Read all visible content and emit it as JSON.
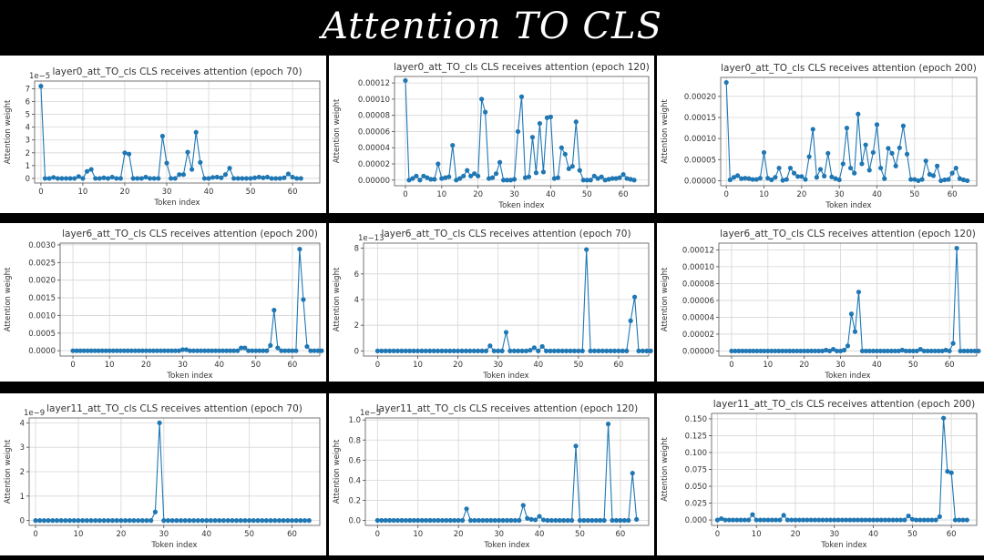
{
  "page_title": "Attention TO CLS",
  "chart_data": [
    {
      "type": "line",
      "title": "layer0_att_TO_cls CLS receives attention (epoch 70)",
      "xlabel": "Token index",
      "ylabel": "Attention weight",
      "exponent": "1e−5",
      "xlim": [
        -1.5,
        66.5
      ],
      "ylim": [
        -0.36,
        7.6
      ],
      "xticks": [
        0,
        10,
        20,
        30,
        40,
        50,
        60
      ],
      "yticks": [
        0,
        1,
        2,
        3,
        4,
        5,
        6,
        7
      ],
      "ytick_labels": [
        "0",
        "1",
        "2",
        "3",
        "4",
        "5",
        "6",
        "7"
      ],
      "grid": true,
      "series": [
        {
          "values": [
            7.2,
            0,
            0,
            0.08,
            0,
            0,
            0,
            0,
            0,
            0.15,
            0,
            0.55,
            0.7,
            0,
            0,
            0.05,
            0,
            0.1,
            0,
            0,
            2.0,
            1.9,
            0,
            0,
            0,
            0.1,
            0,
            0,
            0,
            3.3,
            1.2,
            0,
            0,
            0.3,
            0.3,
            2.05,
            0.7,
            3.6,
            1.25,
            0,
            0,
            0.08,
            0.1,
            0.05,
            0.3,
            0.8,
            0,
            0,
            0,
            0,
            0,
            0.05,
            0.1,
            0.05,
            0.1,
            0,
            0,
            0,
            0.05,
            0.35,
            0.1,
            0,
            0
          ]
        }
      ]
    },
    {
      "type": "line",
      "title": "layer0_att_TO_cls CLS receives attention (epoch 120)",
      "xlabel": "Token index",
      "ylabel": "Attention weight",
      "exponent": "",
      "xlim": [
        -3,
        67
      ],
      "ylim": [
        -7e-06,
        0.000128
      ],
      "xticks": [
        0,
        10,
        20,
        30,
        40,
        50,
        60
      ],
      "yticks": [
        0,
        2e-05,
        4e-05,
        6e-05,
        8e-05,
        0.0001,
        0.00012
      ],
      "ytick_labels": [
        "0.00000",
        "0.00002",
        "0.00004",
        "0.00006",
        "0.00008",
        "0.00010",
        "0.00012"
      ],
      "grid": true,
      "series": [
        {
          "values": [
            0.000123,
            0,
            2e-06,
            5e-06,
            0,
            5e-06,
            3e-06,
            1e-06,
            1e-06,
            2e-05,
            2e-06,
            3e-06,
            4e-06,
            4.3e-05,
            0,
            2e-06,
            5e-06,
            1.2e-05,
            5e-06,
            8e-06,
            5e-06,
            0.0001,
            8.4e-05,
            2e-06,
            3e-06,
            8e-06,
            2.2e-05,
            0,
            0,
            0,
            1e-06,
            6e-05,
            0.000103,
            3e-06,
            4e-06,
            5.3e-05,
            9e-06,
            7e-05,
            1e-05,
            7.7e-05,
            7.8e-05,
            2e-06,
            3e-06,
            4e-05,
            3.2e-05,
            1.4e-05,
            1.7e-05,
            7.2e-05,
            1.2e-05,
            0,
            0,
            0,
            5e-06,
            2e-06,
            4e-06,
            0,
            1e-06,
            2e-06,
            2e-06,
            3e-06,
            7e-06,
            2e-06,
            1e-06,
            0
          ]
        }
      ]
    },
    {
      "type": "line",
      "title": "layer0_att_TO_cls CLS receives attention (epoch 200)",
      "xlabel": "Token index",
      "ylabel": "Attention weight",
      "exponent": "",
      "xlim": [
        -1.5,
        66.5
      ],
      "ylim": [
        -1.2e-05,
        0.000245
      ],
      "xticks": [
        0,
        10,
        20,
        30,
        40,
        50,
        60
      ],
      "yticks": [
        0,
        5e-05,
        0.0001,
        0.00015,
        0.0002
      ],
      "ytick_labels": [
        "0.00000",
        "0.00005",
        "0.00010",
        "0.00015",
        "0.00020"
      ],
      "grid": true,
      "series": [
        {
          "values": [
            0.000233,
            2e-06,
            8e-06,
            1.2e-05,
            5e-06,
            6e-06,
            5e-06,
            3e-06,
            3e-06,
            6e-06,
            6.7e-05,
            6e-06,
            2e-06,
            8e-06,
            3e-05,
            1e-06,
            3e-06,
            3e-05,
            1.8e-05,
            1e-05,
            1e-05,
            3e-06,
            5.7e-05,
            0.000122,
            8e-06,
            2.7e-05,
            1.1e-05,
            6.5e-05,
            9e-06,
            5e-06,
            2e-06,
            4e-05,
            0.000125,
            3e-05,
            1.8e-05,
            0.000158,
            4e-05,
            8.5e-05,
            2.5e-05,
            6.7e-05,
            0.000133,
            3e-05,
            5e-06,
            7.7e-05,
            6.5e-05,
            3.5e-05,
            7.8e-05,
            0.00013,
            6.3e-05,
            3e-06,
            3e-06,
            0,
            3e-06,
            4.7e-05,
            1.5e-05,
            1.2e-05,
            3.5e-05,
            0,
            2e-06,
            3e-06,
            1.8e-05,
            3e-05,
            5e-06,
            2e-06,
            0
          ]
        }
      ]
    },
    {
      "type": "line",
      "title": "layer6_att_TO_cls CLS receives attention (epoch 200)",
      "xlabel": "Token index",
      "ylabel": "Attention weight",
      "exponent": "",
      "xlim": [
        -3.5,
        67.5
      ],
      "ylim": [
        -0.00015,
        0.00305
      ],
      "xticks": [
        0,
        10,
        20,
        30,
        40,
        50,
        60
      ],
      "yticks": [
        0,
        0.0005,
        0.001,
        0.0015,
        0.002,
        0.0025,
        0.003
      ],
      "ytick_labels": [
        "0.0000",
        "0.0005",
        "0.0010",
        "0.0015",
        "0.0020",
        "0.0025",
        "0.0030"
      ],
      "grid": true,
      "series": [
        {
          "values": [
            0,
            0,
            0,
            0,
            0,
            0,
            0,
            0,
            0,
            0,
            0,
            0,
            0,
            0,
            0,
            0,
            0,
            0,
            0,
            0,
            0,
            0,
            0,
            0,
            0,
            0,
            0,
            0,
            0,
            0,
            3e-05,
            3e-05,
            0,
            0,
            0,
            0,
            0,
            0,
            0,
            0,
            0,
            0,
            0,
            0,
            0,
            0,
            8e-05,
            8e-05,
            0,
            0,
            0,
            0,
            0,
            0,
            0.00015,
            0.00115,
            8e-05,
            0,
            0,
            0,
            0,
            0,
            0.00288,
            0.00145,
            0.00012,
            0,
            0,
            0,
            0
          ]
        }
      ]
    },
    {
      "type": "line",
      "title": "layer6_att_TO_cls CLS receives attention (epoch 70)",
      "xlabel": "Token index",
      "ylabel": "Attention weight",
      "exponent": "1e−13",
      "xlim": [
        -3.5,
        67.5
      ],
      "ylim": [
        -0.4,
        8.4
      ],
      "xticks": [
        0,
        10,
        20,
        30,
        40,
        50,
        60
      ],
      "yticks": [
        0,
        2,
        4,
        6,
        8
      ],
      "ytick_labels": [
        "0",
        "2",
        "4",
        "6",
        "8"
      ],
      "grid": true,
      "series": [
        {
          "values": [
            0,
            0,
            0,
            0,
            0,
            0,
            0,
            0,
            0,
            0,
            0,
            0,
            0,
            0,
            0,
            0,
            0,
            0,
            0,
            0,
            0,
            0,
            0,
            0,
            0,
            0,
            0,
            0,
            0.4,
            0,
            0,
            0,
            1.45,
            0,
            0,
            0,
            0,
            0,
            0.05,
            0.25,
            0,
            0.35,
            0,
            0,
            0,
            0,
            0,
            0,
            0,
            0,
            0,
            0,
            7.9,
            0,
            0,
            0,
            0,
            0,
            0,
            0,
            0,
            0,
            0,
            2.35,
            4.2,
            0,
            0,
            0,
            0
          ]
        }
      ]
    },
    {
      "type": "line",
      "title": "layer6_att_TO_cls CLS receives attention (epoch 120)",
      "xlabel": "Token index",
      "ylabel": "Attention weight",
      "exponent": "",
      "xlim": [
        -3.5,
        67.5
      ],
      "ylim": [
        -6e-06,
        0.000128
      ],
      "xticks": [
        0,
        10,
        20,
        30,
        40,
        50,
        60
      ],
      "yticks": [
        0,
        2e-05,
        4e-05,
        6e-05,
        8e-05,
        0.0001,
        0.00012
      ],
      "ytick_labels": [
        "0.00000",
        "0.00002",
        "0.00004",
        "0.00006",
        "0.00008",
        "0.00010",
        "0.00012"
      ],
      "grid": true,
      "series": [
        {
          "values": [
            0,
            0,
            0,
            0,
            0,
            0,
            0,
            0,
            0,
            0,
            0,
            0,
            0,
            0,
            0,
            0,
            0,
            0,
            0,
            0,
            0,
            0,
            0,
            0,
            0,
            0,
            1e-06,
            0,
            2e-06,
            0,
            0,
            1e-06,
            6e-06,
            4.4e-05,
            2.3e-05,
            7e-05,
            0,
            0,
            0,
            0,
            0,
            0,
            0,
            0,
            0,
            0,
            0,
            1e-06,
            0,
            0,
            0,
            0,
            2e-06,
            0,
            0,
            0,
            0,
            0,
            0,
            1e-06,
            0,
            9e-06,
            0.000122,
            0,
            0,
            0,
            0,
            0,
            0
          ]
        }
      ]
    },
    {
      "type": "line",
      "title": "layer11_att_TO_cls CLS receives attention (epoch 70)",
      "xlabel": "Token index",
      "ylabel": "Attention weight",
      "exponent": "1e−9",
      "xlim": [
        -1.5,
        66.5
      ],
      "ylim": [
        -0.2,
        4.2
      ],
      "xticks": [
        0,
        10,
        20,
        30,
        40,
        50,
        60
      ],
      "yticks": [
        0,
        1,
        2,
        3,
        4
      ],
      "ytick_labels": [
        "0",
        "1",
        "2",
        "3",
        "4"
      ],
      "grid": true,
      "series": [
        {
          "values": [
            0,
            0,
            0,
            0,
            0,
            0,
            0,
            0,
            0,
            0,
            0,
            0,
            0,
            0,
            0,
            0,
            0,
            0,
            0,
            0,
            0,
            0,
            0,
            0,
            0,
            0,
            0,
            0,
            0.35,
            4.0,
            0,
            0,
            0,
            0,
            0,
            0,
            0,
            0,
            0,
            0,
            0,
            0,
            0,
            0,
            0,
            0,
            0,
            0,
            0,
            0,
            0,
            0,
            0,
            0,
            0,
            0,
            0,
            0,
            0,
            0,
            0,
            0,
            0,
            0,
            0
          ]
        }
      ]
    },
    {
      "type": "line",
      "title": "layer11_att_TO_cls CLS receives attention (epoch 120)",
      "xlabel": "Token index",
      "ylabel": "Attention weight",
      "exponent": "1e−5",
      "xlim": [
        -3,
        67
      ],
      "ylim": [
        -0.05,
        1.02
      ],
      "xticks": [
        0,
        10,
        20,
        30,
        40,
        50,
        60
      ],
      "yticks": [
        0,
        0.2,
        0.4,
        0.6,
        0.8,
        1.0
      ],
      "ytick_labels": [
        "0.0",
        "0.2",
        "0.4",
        "0.6",
        "0.8",
        "1.0"
      ],
      "grid": true,
      "series": [
        {
          "values": [
            0,
            0,
            0,
            0,
            0,
            0,
            0,
            0,
            0,
            0,
            0,
            0,
            0,
            0,
            0,
            0,
            0,
            0,
            0,
            0,
            0,
            0,
            0.115,
            0,
            0,
            0,
            0,
            0,
            0,
            0,
            0,
            0,
            0,
            0,
            0,
            0,
            0.15,
            0.02,
            0.01,
            0.005,
            0.04,
            0.005,
            0,
            0,
            0,
            0,
            0,
            0,
            0,
            0.74,
            0,
            0,
            0,
            0,
            0,
            0,
            0,
            0.96,
            0,
            0,
            0,
            0,
            0,
            0.47,
            0.01
          ]
        }
      ]
    },
    {
      "type": "line",
      "title": "layer11_att_TO_cls CLS receives attention (epoch 200)",
      "xlabel": "Token index",
      "ylabel": "Attention weight",
      "exponent": "",
      "xlim": [
        -1.5,
        66.5
      ],
      "ylim": [
        -0.008,
        0.158
      ],
      "xticks": [
        0,
        10,
        20,
        30,
        40,
        50,
        60
      ],
      "yticks": [
        0,
        0.025,
        0.05,
        0.075,
        0.1,
        0.125,
        0.15
      ],
      "ytick_labels": [
        "0.000",
        "0.025",
        "0.050",
        "0.075",
        "0.100",
        "0.125",
        "0.150"
      ],
      "grid": true,
      "series": [
        {
          "values": [
            0,
            0.002,
            0,
            0,
            0,
            0,
            0,
            0,
            0,
            0.008,
            0,
            0,
            0,
            0,
            0,
            0,
            0,
            0.007,
            0,
            0,
            0,
            0,
            0,
            0,
            0,
            0,
            0,
            0,
            0,
            0,
            0,
            0,
            0,
            0,
            0,
            0,
            0,
            0,
            0,
            0,
            0,
            0,
            0,
            0,
            0,
            0,
            0,
            0,
            0,
            0.006,
            0.001,
            0,
            0,
            0,
            0,
            0,
            0,
            0.005,
            0.151,
            0.072,
            0.07,
            0,
            0,
            0,
            0
          ]
        }
      ]
    }
  ]
}
